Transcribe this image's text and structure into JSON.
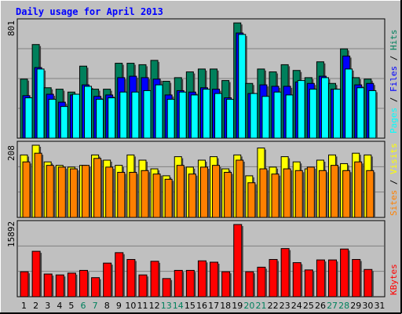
{
  "colors": {
    "panel_bg": "#c0c0c0",
    "outer_bg": "#c0c0c0",
    "title": "#0000ff",
    "weekday_label": "#000000",
    "weekend_label": "#00805c",
    "hits": "#00805c",
    "files": "#0000ff",
    "pages": "#00ffff",
    "visits": "#ffff00",
    "sites": "#ff8000",
    "kbytes": "#ff0000",
    "grid": "#808080"
  },
  "chart_data": {
    "type": "bar",
    "title": "Daily usage for April 2013",
    "x": [
      "1",
      "2",
      "3",
      "4",
      "5",
      "6",
      "7",
      "8",
      "9",
      "10",
      "11",
      "12",
      "13",
      "14",
      "15",
      "16",
      "17",
      "18",
      "19",
      "20",
      "21",
      "22",
      "23",
      "24",
      "25",
      "26",
      "27",
      "28",
      "29",
      "30",
      "31"
    ],
    "weekend_days": [
      "6",
      "7",
      "13",
      "14",
      "20",
      "21",
      "27",
      "28"
    ],
    "panels": [
      {
        "id": "hits_files_pages",
        "max_label": "801",
        "ylim": [
          0,
          801
        ],
        "series": [
          {
            "name": "Hits",
            "color": "#00805c",
            "values": [
              410,
              650,
              350,
              340,
              320,
              500,
              340,
              340,
              520,
              520,
              510,
              540,
              395,
              420,
              460,
              480,
              480,
              400,
              800,
              380,
              480,
              460,
              510,
              470,
              420,
              530,
              380,
              620,
              420,
              410,
              null
            ]
          },
          {
            "name": "Files",
            "color": "#0000ff",
            "values": [
              295,
              490,
              305,
              250,
              300,
              370,
              290,
              300,
              420,
              430,
              420,
              410,
              300,
              330,
              320,
              350,
              340,
              280,
              730,
              310,
              370,
              360,
              360,
              390,
              380,
              430,
              340,
              570,
              370,
              380,
              null
            ]
          },
          {
            "name": "Pages",
            "color": "#00ffff",
            "values": [
              280,
              480,
              270,
              220,
              305,
              360,
              270,
              280,
              320,
              320,
              330,
              370,
              270,
              320,
              300,
              340,
              310,
              270,
              720,
              310,
              290,
              320,
              300,
              400,
              340,
              420,
              340,
              480,
              350,
              330,
              null
            ]
          }
        ]
      },
      {
        "id": "visits_sites",
        "max_label": "208",
        "ylim": [
          0,
          208
        ],
        "series": [
          {
            "name": "Visits",
            "color": "#ffff00",
            "values": [
              180,
              208,
              160,
              150,
              145,
              150,
              180,
              165,
              150,
              180,
              165,
              140,
              120,
              175,
              145,
              165,
              175,
              140,
              180,
              120,
              200,
              145,
              175,
              160,
              140,
              165,
              180,
              155,
              185,
              180,
              null
            ]
          },
          {
            "name": "Sites",
            "color": "#ff8000",
            "values": [
              160,
              185,
              150,
              145,
              140,
              150,
              170,
              145,
              130,
              130,
              135,
              125,
              110,
              150,
              125,
              145,
              150,
              130,
              165,
              100,
              140,
              125,
              140,
              135,
              145,
              135,
              150,
              135,
              160,
              135,
              null
            ]
          }
        ]
      },
      {
        "id": "kbytes",
        "max_label": "15892",
        "ylim": [
          0,
          15892
        ],
        "series": [
          {
            "name": "KBytes",
            "color": "#ff0000",
            "values": [
              5500,
              10000,
              5000,
              4800,
              5200,
              5800,
              4200,
              7400,
              9700,
              8200,
              4800,
              7800,
              4000,
              5800,
              5800,
              7900,
              7600,
              5500,
              15892,
              5500,
              6500,
              8200,
              10600,
              7500,
              5900,
              8100,
              8100,
              10500,
              8200,
              6000,
              null
            ]
          }
        ]
      }
    ]
  }
}
